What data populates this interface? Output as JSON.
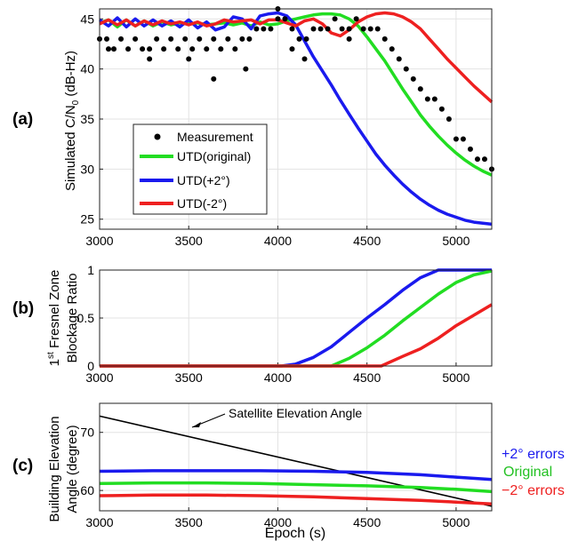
{
  "colors": {
    "measurement": "#000000",
    "original": "#22dd22",
    "plus2": "#1a1aee",
    "minus2": "#ee2020",
    "axis": "#222222",
    "grid": "#e3e3e3"
  },
  "chart_data": [
    {
      "panel_label": "(a)",
      "type": "line",
      "ylabel": "Simulated C/N",
      "ylabel_sub": "0",
      "ylabel_units": " (dB-Hz)",
      "xlim": [
        3000,
        5200
      ],
      "ylim": [
        24,
        46
      ],
      "xticks": [
        3000,
        3500,
        4000,
        4500,
        5000
      ],
      "yticks": [
        25,
        30,
        35,
        40,
        45
      ],
      "grid": true,
      "legend": [
        "Measurement",
        "UTD(original)",
        "UTD(+2°)",
        "UTD(-2°)"
      ],
      "legend_position": "lower-left",
      "series": [
        {
          "name": "UTD(original)",
          "key": "original",
          "x": [
            3000,
            3050,
            3100,
            3150,
            3200,
            3250,
            3300,
            3350,
            3400,
            3450,
            3500,
            3550,
            3600,
            3650,
            3700,
            3750,
            3800,
            3850,
            3900,
            3950,
            4000,
            4050,
            4100,
            4150,
            4200,
            4250,
            4300,
            4350,
            4400,
            4450,
            4500,
            4550,
            4600,
            4650,
            4700,
            4750,
            4800,
            4850,
            4900,
            4950,
            5000,
            5050,
            5100,
            5150,
            5200
          ],
          "y": [
            44.6,
            44.9,
            44.2,
            44.9,
            44.3,
            44.8,
            44.3,
            44.7,
            44.4,
            44.6,
            44.5,
            44.6,
            44.4,
            44.5,
            44.6,
            44.4,
            44.6,
            44.3,
            44.7,
            44.4,
            44.5,
            44.8,
            45.0,
            45.2,
            45.4,
            45.5,
            45.5,
            45.4,
            45.0,
            44.3,
            43.2,
            42.0,
            40.8,
            39.4,
            38.0,
            36.7,
            35.4,
            34.3,
            33.3,
            32.4,
            31.6,
            30.9,
            30.3,
            29.8,
            29.4
          ]
        },
        {
          "name": "UTD(+2°)",
          "key": "plus2",
          "x": [
            3000,
            3050,
            3100,
            3150,
            3200,
            3250,
            3300,
            3350,
            3400,
            3450,
            3500,
            3550,
            3600,
            3650,
            3700,
            3750,
            3800,
            3850,
            3900,
            3950,
            4000,
            4050,
            4100,
            4150,
            4200,
            4250,
            4300,
            4350,
            4400,
            4450,
            4500,
            4550,
            4600,
            4650,
            4700,
            4750,
            4800,
            4850,
            4900,
            4950,
            5000,
            5050,
            5100,
            5150,
            5200
          ],
          "y": [
            44.9,
            44.3,
            45.1,
            44.2,
            45.0,
            44.3,
            44.9,
            44.3,
            44.8,
            44.2,
            44.9,
            44.1,
            44.7,
            43.9,
            44.2,
            45.2,
            45.0,
            44.0,
            45.3,
            45.5,
            45.6,
            45.3,
            44.4,
            42.8,
            41.2,
            39.8,
            38.4,
            36.9,
            35.5,
            34.1,
            32.8,
            31.5,
            30.4,
            29.4,
            28.5,
            27.7,
            27.0,
            26.4,
            25.9,
            25.5,
            25.2,
            24.9,
            24.7,
            24.6,
            24.5
          ]
        },
        {
          "name": "UTD(-2°)",
          "key": "minus2",
          "x": [
            3000,
            3050,
            3100,
            3150,
            3200,
            3250,
            3300,
            3350,
            3400,
            3450,
            3500,
            3550,
            3600,
            3650,
            3700,
            3750,
            3800,
            3850,
            3900,
            3950,
            4000,
            4050,
            4100,
            4150,
            4200,
            4250,
            4300,
            4350,
            4400,
            4450,
            4500,
            4550,
            4600,
            4650,
            4700,
            4750,
            4800,
            4850,
            4900,
            4950,
            5000,
            5050,
            5100,
            5150,
            5200
          ],
          "y": [
            44.5,
            44.9,
            44.4,
            44.9,
            44.3,
            44.8,
            44.4,
            44.8,
            44.5,
            44.7,
            44.4,
            44.7,
            44.3,
            44.5,
            44.9,
            44.7,
            44.8,
            44.9,
            44.5,
            44.9,
            44.9,
            44.6,
            44.3,
            44.8,
            45.0,
            44.5,
            43.6,
            43.3,
            43.9,
            44.7,
            45.2,
            45.5,
            45.6,
            45.5,
            45.2,
            44.7,
            44.0,
            43.0,
            42.0,
            41.0,
            40.1,
            39.2,
            38.3,
            37.5,
            36.7
          ]
        },
        {
          "name": "Measurement",
          "key": "measurement",
          "style": "dots",
          "x": [
            3000,
            3040,
            3080,
            3120,
            3160,
            3200,
            3240,
            3280,
            3320,
            3360,
            3400,
            3440,
            3480,
            3520,
            3560,
            3600,
            3640,
            3680,
            3720,
            3760,
            3800,
            3840,
            3880,
            3920,
            3960,
            4000,
            4040,
            4080,
            4120,
            4160,
            4200,
            4240,
            4280,
            4320,
            4360,
            4400,
            4440,
            4480,
            4520,
            4560,
            4600,
            4640,
            4680,
            4720,
            4760,
            4800,
            4840,
            4880,
            4920,
            4960,
            5000,
            5040,
            5080,
            5120,
            5160,
            5200,
            3280,
            3640,
            3820,
            3050,
            3500,
            4080,
            4150,
            4000,
            4400
          ],
          "y": [
            43,
            43,
            42,
            43,
            42,
            43,
            42,
            42,
            43,
            42,
            43,
            42,
            43,
            42,
            43,
            42,
            43,
            42,
            43,
            42,
            43,
            43,
            44,
            44,
            44,
            45,
            45,
            44,
            43,
            43,
            44,
            44,
            44,
            45,
            44,
            43,
            45,
            44,
            44,
            44,
            43,
            42,
            41,
            40,
            39,
            38,
            37,
            37,
            36,
            35,
            33,
            33,
            32,
            31,
            31,
            30,
            41,
            39,
            40,
            42,
            41,
            42,
            41,
            46,
            44
          ]
        }
      ]
    },
    {
      "panel_label": "(b)",
      "type": "line",
      "ylabel_line1": "1",
      "ylabel_sup": "st",
      "ylabel_line1_rest": " Fresnel Zone",
      "ylabel_line2": "Blockage Ratio",
      "xlim": [
        3000,
        5200
      ],
      "ylim": [
        0,
        1
      ],
      "xticks": [
        3000,
        3500,
        4000,
        4500,
        5000
      ],
      "yticks": [
        0,
        0.5,
        1
      ],
      "grid": true,
      "series": [
        {
          "name": "UTD(+2°)",
          "key": "plus2",
          "x": [
            3000,
            4020,
            4100,
            4200,
            4300,
            4400,
            4500,
            4600,
            4700,
            4800,
            4900,
            5200
          ],
          "y": [
            0,
            0,
            0.02,
            0.09,
            0.2,
            0.35,
            0.5,
            0.64,
            0.79,
            0.92,
            1,
            1
          ]
        },
        {
          "name": "UTD(original)",
          "key": "original",
          "x": [
            3000,
            4300,
            4400,
            4500,
            4600,
            4700,
            4800,
            4900,
            5000,
            5100,
            5200
          ],
          "y": [
            0,
            0,
            0.08,
            0.19,
            0.32,
            0.47,
            0.61,
            0.75,
            0.87,
            0.95,
            0.99
          ]
        },
        {
          "name": "UTD(-2°)",
          "key": "minus2",
          "x": [
            3000,
            4580,
            4700,
            4800,
            4900,
            5000,
            5100,
            5200
          ],
          "y": [
            0,
            0,
            0.1,
            0.18,
            0.29,
            0.42,
            0.53,
            0.64
          ]
        }
      ]
    },
    {
      "panel_label": "(c)",
      "type": "line",
      "ylabel_line1": "Building Elevation",
      "ylabel_line2": "Angle (degree)",
      "xlabel": "Epoch (s)",
      "xlim": [
        3000,
        5200
      ],
      "ylim": [
        56.5,
        75
      ],
      "xticks": [
        3000,
        3500,
        4000,
        4500,
        5000
      ],
      "yticks": [
        60,
        70
      ],
      "grid": true,
      "annotation": "Satellite Elevation Angle",
      "annotation_anchor": {
        "x": 3500,
        "y": 70.2
      },
      "right_labels": [
        {
          "text": "+2° errors",
          "key": "plus2"
        },
        {
          "text": "Original",
          "key": "original"
        },
        {
          "text": "−2° errors",
          "key": "minus2"
        }
      ],
      "series": [
        {
          "name": "Satellite Elevation Angle",
          "key": "measurement",
          "x": [
            3000,
            5200
          ],
          "y": [
            72.8,
            57.3
          ]
        },
        {
          "name": "+2° errors",
          "key": "plus2",
          "x": [
            3000,
            3300,
            3600,
            3900,
            4200,
            4500,
            4800,
            5000,
            5200
          ],
          "y": [
            63.3,
            63.4,
            63.4,
            63.4,
            63.3,
            63.1,
            62.7,
            62.3,
            61.9
          ]
        },
        {
          "name": "Original",
          "key": "original",
          "x": [
            3000,
            3300,
            3600,
            3900,
            4200,
            4500,
            4800,
            5000,
            5200
          ],
          "y": [
            61.2,
            61.3,
            61.3,
            61.2,
            61.0,
            60.8,
            60.5,
            60.2,
            59.8
          ]
        },
        {
          "name": "−2° errors",
          "key": "minus2",
          "x": [
            3000,
            3300,
            3600,
            3900,
            4200,
            4500,
            4800,
            5000,
            5200
          ],
          "y": [
            59.1,
            59.2,
            59.2,
            59.1,
            58.9,
            58.6,
            58.3,
            58.0,
            57.7
          ]
        }
      ]
    }
  ]
}
